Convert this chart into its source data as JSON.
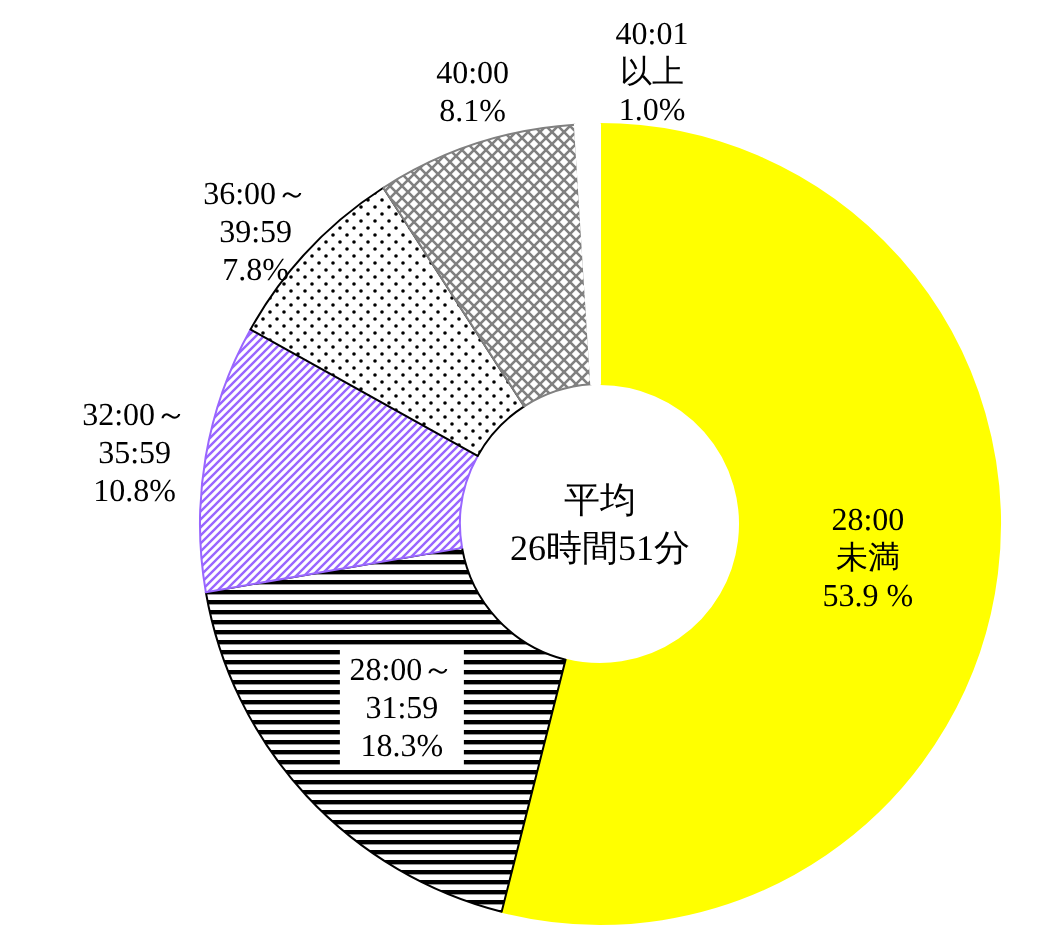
{
  "chart_data": {
    "type": "donut",
    "categories": [
      "28:00未満",
      "28:00～31:59",
      "32:00～35:59",
      "36:00～39:59",
      "40:00",
      "40:01以上"
    ],
    "values": [
      53.9,
      18.3,
      10.8,
      7.8,
      8.1,
      1.0
    ],
    "value_labels": [
      "53.9 %",
      "18.3%",
      "10.8%",
      "7.8%",
      "8.1%",
      "1.0%"
    ],
    "colors": [
      "#ffff00",
      "#000000",
      "#9966ff",
      "#000000",
      "#808080",
      "#ffffff"
    ],
    "annotations": [
      "平均 26時間51分"
    ]
  }
}
